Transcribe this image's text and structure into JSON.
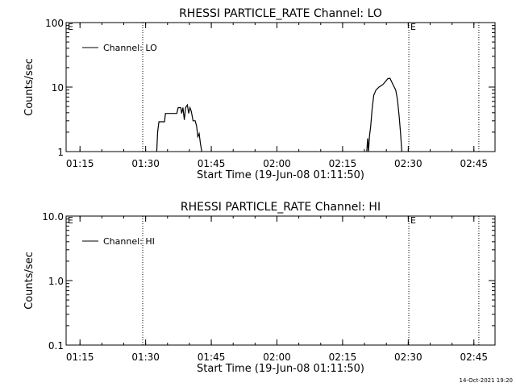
{
  "chart_data": [
    {
      "type": "line",
      "title": "RHESSI PARTICLE_RATE Channel: LO",
      "xlabel": "Start Time (19-Jun-08 01:11:50)",
      "ylabel": "Counts/sec",
      "yscale": "log",
      "ylim": [
        1,
        100
      ],
      "yticks": [
        1,
        10,
        100
      ],
      "ytick_labels": [
        "1",
        "10",
        "100"
      ],
      "x_unit": "minutes from 01:11:50",
      "xlim": [
        0,
        98
      ],
      "xticks": [
        3.17,
        18.17,
        33.17,
        48.17,
        63.17,
        78.17,
        93.17
      ],
      "xtick_labels": [
        "01:15",
        "01:30",
        "01:45",
        "02:00",
        "02:15",
        "02:30",
        "02:45"
      ],
      "legend": "top-left",
      "grid": false,
      "series": [
        {
          "name": "Channel: LO",
          "points": [
            [
              20.7,
              1.0
            ],
            [
              20.9,
              2.0
            ],
            [
              21.2,
              2.9
            ],
            [
              22.5,
              2.9
            ],
            [
              22.7,
              3.9
            ],
            [
              25.3,
              3.9
            ],
            [
              25.6,
              4.8
            ],
            [
              26.2,
              4.8
            ],
            [
              26.4,
              3.9
            ],
            [
              26.7,
              4.8
            ],
            [
              27.0,
              3.1
            ],
            [
              27.3,
              4.8
            ],
            [
              27.7,
              5.3
            ],
            [
              28.0,
              3.9
            ],
            [
              28.3,
              4.8
            ],
            [
              28.6,
              4.2
            ],
            [
              29.0,
              3.0
            ],
            [
              29.5,
              3.0
            ],
            [
              29.8,
              2.5
            ],
            [
              30.1,
              1.7
            ],
            [
              30.4,
              1.9
            ],
            [
              30.7,
              1.3
            ],
            [
              31.0,
              1.0
            ]
          ]
        },
        {
          "name": "Channel: LO",
          "points": [
            [
              68.7,
              1.0
            ],
            [
              68.9,
              1.6
            ],
            [
              69.1,
              1.0
            ],
            [
              69.3,
              1.7
            ],
            [
              69.6,
              2.5
            ],
            [
              69.9,
              4.5
            ],
            [
              70.3,
              7.5
            ],
            [
              70.8,
              9.0
            ],
            [
              71.5,
              10.0
            ],
            [
              72.4,
              11.0
            ],
            [
              73.1,
              12.5
            ],
            [
              73.5,
              13.5
            ],
            [
              74.0,
              13.7
            ],
            [
              74.4,
              12.0
            ],
            [
              74.8,
              10.5
            ],
            [
              75.3,
              9.0
            ],
            [
              75.7,
              6.5
            ],
            [
              76.1,
              3.5
            ],
            [
              76.4,
              2.0
            ],
            [
              76.7,
              1.0
            ]
          ]
        }
      ],
      "markers": [
        {
          "x": 17.5,
          "label": ""
        },
        {
          "x": 78.3,
          "label": "E"
        },
        {
          "x": 94.3,
          "label": ""
        }
      ],
      "corner_label": "E",
      "legend_label": "Channel: LO"
    },
    {
      "type": "line",
      "title": "RHESSI PARTICLE_RATE Channel: HI",
      "xlabel": "Start Time (19-Jun-08 01:11:50)",
      "ylabel": "Counts/sec",
      "yscale": "log",
      "ylim": [
        0.1,
        10.0
      ],
      "yticks": [
        0.1,
        1.0,
        10.0
      ],
      "ytick_labels": [
        "0.1",
        "1.0",
        "10.0"
      ],
      "x_unit": "minutes from 01:11:50",
      "xlim": [
        0,
        98
      ],
      "xticks": [
        3.17,
        18.17,
        33.17,
        48.17,
        63.17,
        78.17,
        93.17
      ],
      "xtick_labels": [
        "01:15",
        "01:30",
        "01:45",
        "02:00",
        "02:15",
        "02:30",
        "02:45"
      ],
      "legend": "top-left",
      "grid": false,
      "series": [],
      "markers": [
        {
          "x": 17.5,
          "label": ""
        },
        {
          "x": 78.3,
          "label": "E"
        },
        {
          "x": 94.3,
          "label": ""
        }
      ],
      "corner_label": "E",
      "legend_label": "Channel: HI"
    }
  ],
  "footer_timestamp": "14-Oct-2021 19:20"
}
